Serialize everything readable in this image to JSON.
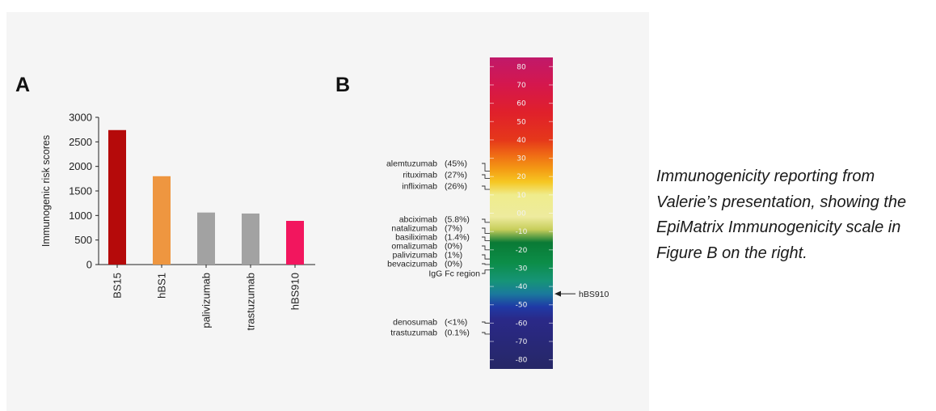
{
  "chart_data": [
    {
      "type": "bar",
      "panel_label": "A",
      "title": "",
      "xlabel": "",
      "ylabel": "Immunogenic risk scores",
      "ylim": [
        0,
        3000
      ],
      "yticks": [
        "0",
        "500",
        "1000",
        "1500",
        "2000",
        "2500",
        "3000"
      ],
      "categories": [
        "BS15",
        "hBS1",
        "palivizumab",
        "trastuzumab",
        "hBS910"
      ],
      "values": [
        2740,
        1800,
        1060,
        1040,
        890
      ],
      "colors": [
        "#b50a0a",
        "#ee9640",
        "#a2a2a2",
        "#a2a2a2",
        "#f2165e"
      ],
      "grid": false,
      "legend": "none"
    },
    {
      "type": "heatmap",
      "panel_label": "B",
      "title": "",
      "scale_range": [
        -85,
        85
      ],
      "scale_ticks": [
        "80",
        "70",
        "60",
        "50",
        "40",
        "30",
        "20",
        "10",
        "00",
        "-10",
        "-20",
        "-30",
        "-40",
        "-50",
        "-60",
        "-70",
        "-80"
      ],
      "color_stops": [
        {
          "value": 85,
          "color": "#c0196a"
        },
        {
          "value": 70,
          "color": "#d5174d"
        },
        {
          "value": 55,
          "color": "#e0202b"
        },
        {
          "value": 40,
          "color": "#e5371a"
        },
        {
          "value": 32,
          "color": "#ef6a15"
        },
        {
          "value": 24,
          "color": "#f49b14"
        },
        {
          "value": 17,
          "color": "#f6c722"
        },
        {
          "value": 10,
          "color": "#efec8c"
        },
        {
          "value": -2,
          "color": "#eeeb9e"
        },
        {
          "value": -9,
          "color": "#c6cd5a"
        },
        {
          "value": -16,
          "color": "#0a7a35"
        },
        {
          "value": -27,
          "color": "#0c8d48"
        },
        {
          "value": -37,
          "color": "#169477"
        },
        {
          "value": -44,
          "color": "#1a7a9c"
        },
        {
          "value": -51,
          "color": "#1f3aa6"
        },
        {
          "value": -58,
          "color": "#2a2988"
        },
        {
          "value": -85,
          "color": "#262766"
        }
      ],
      "markers": [
        {
          "name": "alemtuzumab",
          "percent": "(45%)",
          "score": 23,
          "side": "left"
        },
        {
          "name": "rituximab",
          "percent": "(27%)",
          "score": 19,
          "side": "left"
        },
        {
          "name": "infliximab",
          "percent": "(26%)",
          "score": 13,
          "side": "left"
        },
        {
          "name": "abciximab",
          "percent": "(5.8%)",
          "score": -5,
          "side": "left"
        },
        {
          "name": "natalizumab",
          "percent": "(7%)",
          "score": -11,
          "side": "left"
        },
        {
          "name": "basiliximab",
          "percent": "(1.4%)",
          "score": -15,
          "side": "left"
        },
        {
          "name": "omalizumab",
          "percent": "(0%)",
          "score": -20,
          "side": "left"
        },
        {
          "name": "palivizumab",
          "percent": "(1%)",
          "score": -25,
          "side": "left"
        },
        {
          "name": "bevacizumab",
          "percent": "(0%)",
          "score": -28,
          "side": "left"
        },
        {
          "name": "IgG Fc region",
          "percent": "",
          "score": -31,
          "side": "left"
        },
        {
          "name": "denosumab",
          "percent": "(<1%)",
          "score": -60,
          "side": "left"
        },
        {
          "name": "trastuzumab",
          "percent": "(0.1%)",
          "score": -66,
          "side": "left"
        },
        {
          "name": "hBS910",
          "percent": "",
          "score": -44,
          "side": "right"
        }
      ]
    }
  ],
  "caption": [
    "Immunogenicity reporting from",
    "Valerie’s presentation, showing the",
    "EpiMatrix Immunogenicity scale in",
    "Figure B on the right."
  ]
}
